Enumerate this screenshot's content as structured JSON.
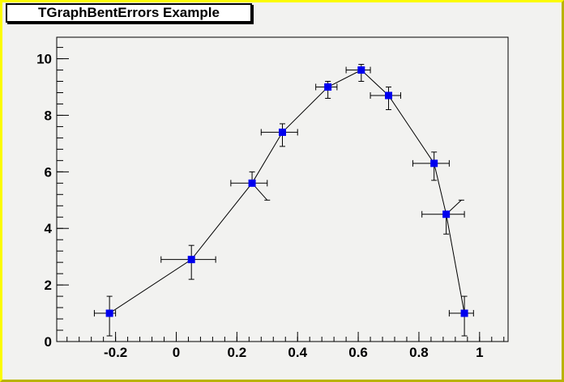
{
  "title": "TGraphBentErrors Example",
  "colors": {
    "canvas_bg": "#f2f2f0",
    "border_light": "#fbfb00",
    "border_dark": "#b9b300",
    "frame_line": "#000000",
    "text": "#000000",
    "marker_fill": "#0000ee",
    "error_line": "#000000",
    "title_box_bg": "#ffffff"
  },
  "chart_data": {
    "type": "scatter",
    "title": "TGraphBentErrors Example",
    "xlabel": "",
    "ylabel": "",
    "x": [
      -0.22,
      0.05,
      0.25,
      0.35,
      0.5,
      0.61,
      0.7,
      0.85,
      0.89,
      0.95
    ],
    "y": [
      1,
      2.9,
      5.6,
      7.4,
      9,
      9.6,
      8.7,
      6.3,
      4.5,
      1
    ],
    "ex_low": [
      0.05,
      0.1,
      0.07,
      0.07,
      0.04,
      0.05,
      0.06,
      0.07,
      0.08,
      0.05
    ],
    "ex_high": [
      0.02,
      0.08,
      0.05,
      0.05,
      0.03,
      0.03,
      0.04,
      0.05,
      0.06,
      0.03
    ],
    "ey_low": [
      0.8,
      0.7,
      0.6,
      0.5,
      0.4,
      0.4,
      0.5,
      0.6,
      0.7,
      0.8
    ],
    "ey_high": [
      0.6,
      0.5,
      0.4,
      0.3,
      0.2,
      0.2,
      0.3,
      0.4,
      0.5,
      0.6
    ],
    "bend_low_dx": [
      0,
      0,
      0.05,
      0,
      0,
      0,
      0,
      0,
      0,
      0
    ],
    "bend_high_dx": [
      0,
      0,
      0,
      0,
      0,
      0,
      0,
      0,
      0.05,
      0
    ],
    "xlim": [
      -0.394,
      1.094
    ],
    "ylim": [
      0,
      10.76
    ],
    "xtick_values": [
      -0.2,
      0,
      0.2,
      0.4,
      0.6,
      0.8,
      1
    ],
    "xtick_labels": [
      "-0.2",
      "0",
      "0.2",
      "0.4",
      "0.6",
      "0.8",
      "1"
    ],
    "ytick_values": [
      0,
      2,
      4,
      6,
      8,
      10
    ],
    "ytick_labels": [
      "0",
      "2",
      "4",
      "6",
      "8",
      "10"
    ],
    "x_minor_step": 0.04,
    "y_minor_step": 0.4,
    "marker": "filled-square",
    "line_between_points": true,
    "grid": false,
    "legend": null
  }
}
